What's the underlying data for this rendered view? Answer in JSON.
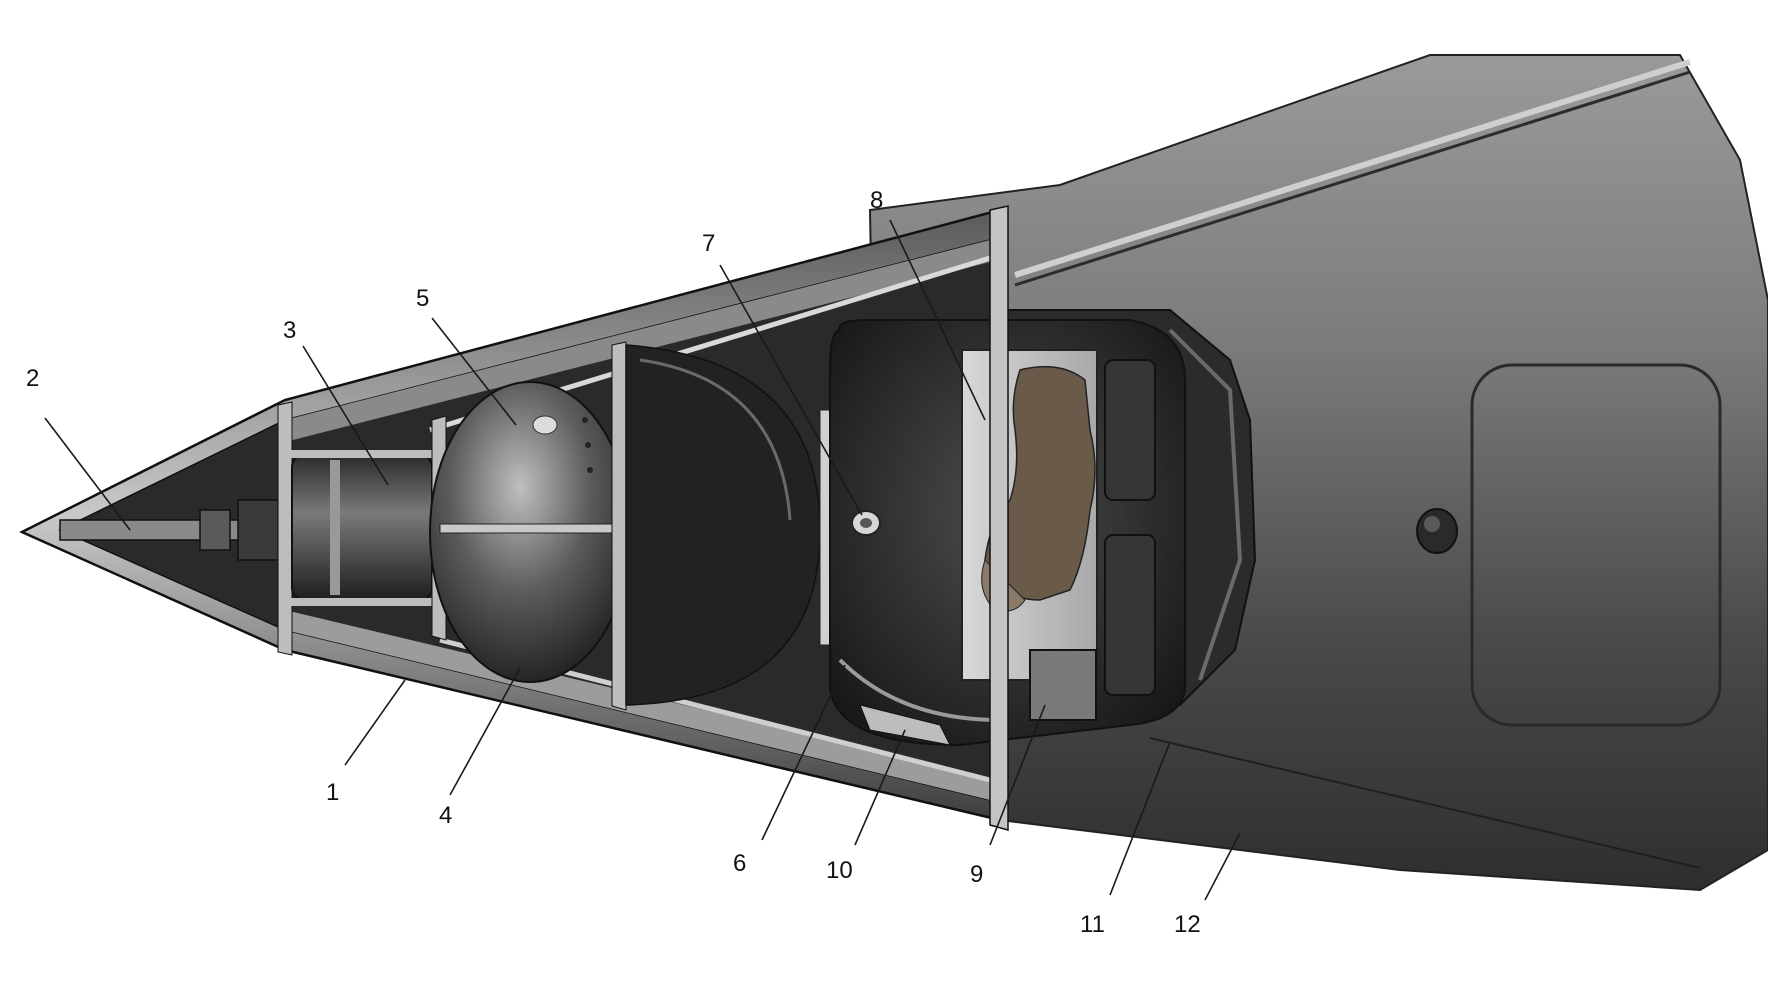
{
  "figure": {
    "callouts": [
      {
        "id": "1",
        "label": "1",
        "part": "nose-cone-shell"
      },
      {
        "id": "2",
        "label": "2",
        "part": "nose-tip-rod"
      },
      {
        "id": "3",
        "label": "3",
        "part": "front-cylinder-unit"
      },
      {
        "id": "4",
        "label": "4",
        "part": "frame-rib"
      },
      {
        "id": "5",
        "label": "5",
        "part": "spherical-tank"
      },
      {
        "id": "6",
        "label": "6",
        "part": "animal-cabin"
      },
      {
        "id": "7",
        "label": "7",
        "part": "cabin-port"
      },
      {
        "id": "8",
        "label": "8",
        "part": "animal-tray"
      },
      {
        "id": "9",
        "label": "9",
        "part": "equipment-box"
      },
      {
        "id": "10",
        "label": "10",
        "part": "lower-bracket"
      },
      {
        "id": "11",
        "label": "11",
        "part": "body-seam"
      },
      {
        "id": "12",
        "label": "12",
        "part": "outer-hull"
      }
    ]
  },
  "colors": {
    "background": "#ffffff",
    "hull_light": "#b9b9b9",
    "hull_dark": "#3a3a3a",
    "interior_dark": "#222222",
    "interior_mid": "#6e6e6e",
    "highlight": "#e6e6e6",
    "ink": "#111111"
  }
}
